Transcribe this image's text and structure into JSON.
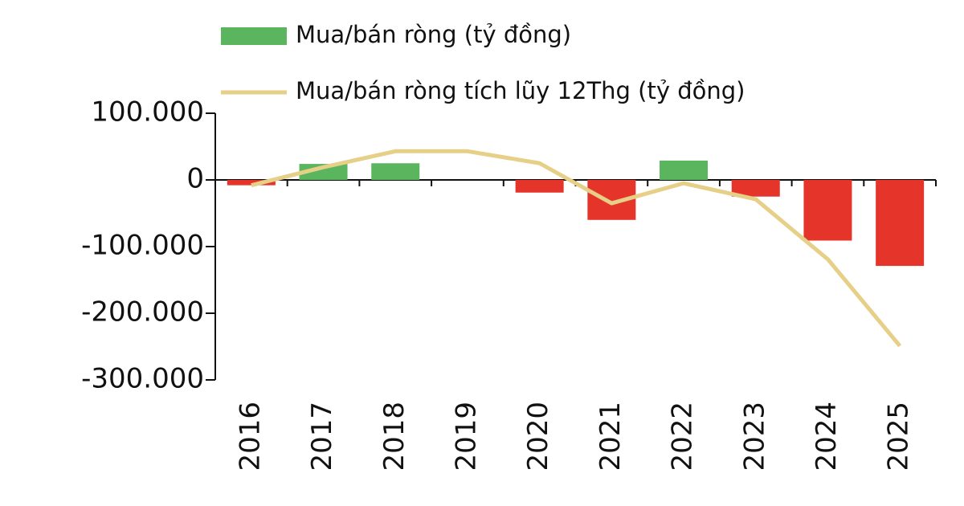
{
  "chart_data": {
    "type": "bar",
    "categories": [
      "2016",
      "2017",
      "2018",
      "2019",
      "2020",
      "2021",
      "2022",
      "2023",
      "2024",
      "2025"
    ],
    "series": [
      {
        "name": "Mua/bán ròng (tỷ đồng)",
        "type": "bar",
        "positive_color": "#5ab55e",
        "negative_color": "#e5352a",
        "values": [
          -8000,
          24000,
          25000,
          0,
          -19000,
          -60000,
          29000,
          -25000,
          -91000,
          -129000
        ]
      },
      {
        "name": "Mua/bán ròng tích lũy 12Thg (tỷ đồng)",
        "type": "line",
        "color": "#e6cf86",
        "values": [
          -8000,
          19000,
          43000,
          43000,
          25000,
          -35000,
          -5000,
          -29000,
          -119000,
          -249000
        ]
      }
    ],
    "ylim": [
      -300000,
      100000
    ],
    "yticks": [
      {
        "value": -300000,
        "label": "-300.000"
      },
      {
        "value": -200000,
        "label": "-200.000"
      },
      {
        "value": -100000,
        "label": "-100.000"
      },
      0,
      {
        "value": 100000,
        "label": "100.000"
      }
    ]
  }
}
